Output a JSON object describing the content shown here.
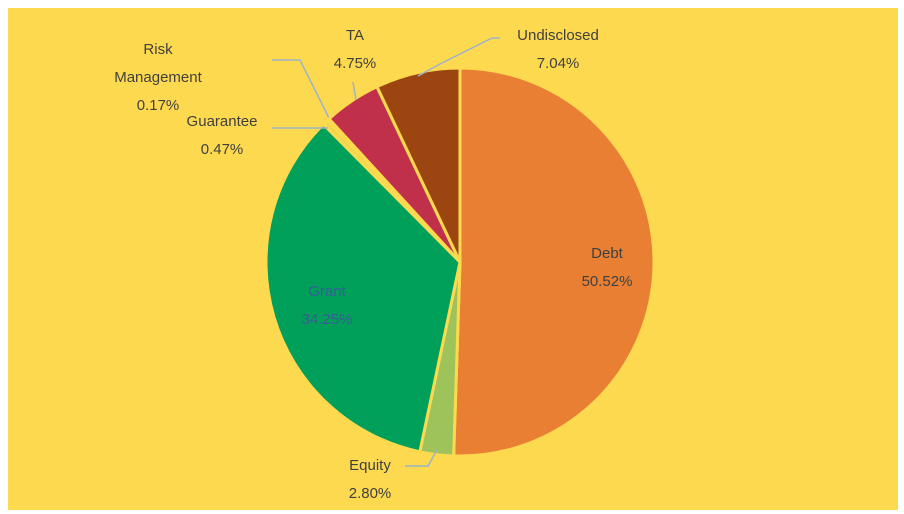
{
  "chart_data": {
    "type": "pie",
    "categories": [
      "Debt",
      "Equity",
      "Grant",
      "Guarantee",
      "Risk Management",
      "TA",
      "Undisclosed"
    ],
    "values": [
      50.52,
      2.8,
      34.25,
      0.47,
      0.17,
      4.75,
      7.04
    ],
    "value_labels": [
      "50.52%",
      "2.80%",
      "34.25%",
      "0.47%",
      "0.17%",
      "4.75%",
      "7.04%"
    ],
    "colors": [
      "#e97f33",
      "#9dc35a",
      "#00a05a",
      "#f3d54a",
      "#a9c4e0",
      "#c0304a",
      "#9c4510"
    ]
  }
}
